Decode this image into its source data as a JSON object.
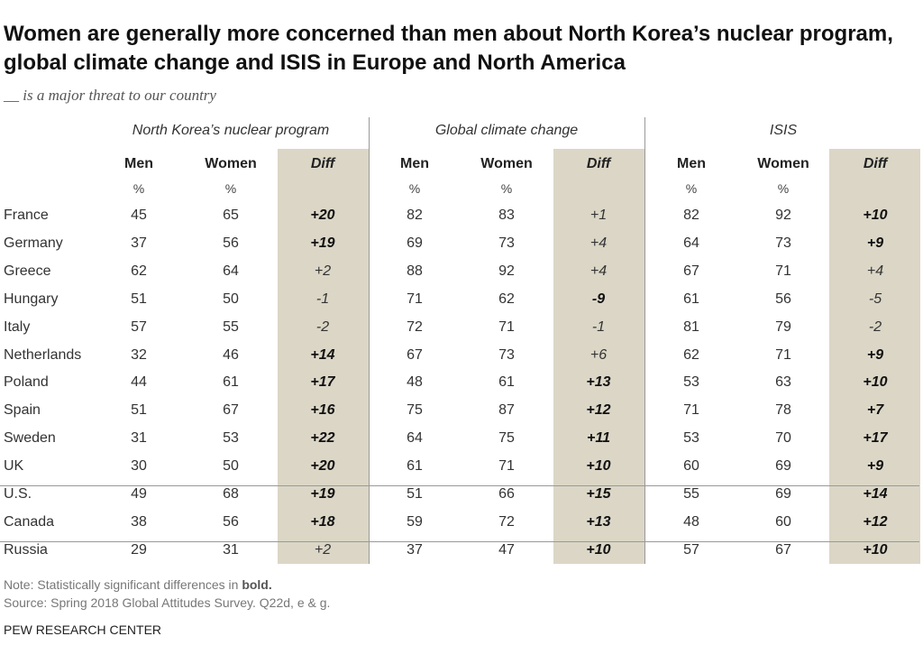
{
  "header": {
    "title": "Women are generally more concerned than men about North Korea’s nuclear program, global climate change and ISIS in Europe and North America",
    "subtitle": "__ is a major threat to our country"
  },
  "table": {
    "groups": [
      "North Korea’s nuclear program",
      "Global climate change",
      "ISIS"
    ],
    "columns": [
      {
        "label": "Men",
        "unit": "%"
      },
      {
        "label": "Women",
        "unit": "%"
      },
      {
        "label": "Diff"
      }
    ],
    "row_groups": [
      [
        {
          "country": "France",
          "cells": [
            [
              45,
              65,
              "+20"
            ],
            [
              82,
              83,
              "+1"
            ],
            [
              82,
              92,
              "+10"
            ]
          ],
          "bold": [
            true,
            false,
            true
          ]
        },
        {
          "country": "Germany",
          "cells": [
            [
              37,
              56,
              "+19"
            ],
            [
              69,
              73,
              "+4"
            ],
            [
              64,
              73,
              "+9"
            ]
          ],
          "bold": [
            true,
            false,
            true
          ]
        },
        {
          "country": "Greece",
          "cells": [
            [
              62,
              64,
              "+2"
            ],
            [
              88,
              92,
              "+4"
            ],
            [
              67,
              71,
              "+4"
            ]
          ],
          "bold": [
            false,
            false,
            false
          ]
        },
        {
          "country": "Hungary",
          "cells": [
            [
              51,
              50,
              "-1"
            ],
            [
              71,
              62,
              "-9"
            ],
            [
              61,
              56,
              "-5"
            ]
          ],
          "bold": [
            false,
            true,
            false
          ]
        },
        {
          "country": "Italy",
          "cells": [
            [
              57,
              55,
              "-2"
            ],
            [
              72,
              71,
              "-1"
            ],
            [
              81,
              79,
              "-2"
            ]
          ],
          "bold": [
            false,
            false,
            false
          ]
        },
        {
          "country": "Netherlands",
          "cells": [
            [
              32,
              46,
              "+14"
            ],
            [
              67,
              73,
              "+6"
            ],
            [
              62,
              71,
              "+9"
            ]
          ],
          "bold": [
            true,
            false,
            true
          ]
        },
        {
          "country": "Poland",
          "cells": [
            [
              44,
              61,
              "+17"
            ],
            [
              48,
              61,
              "+13"
            ],
            [
              53,
              63,
              "+10"
            ]
          ],
          "bold": [
            true,
            true,
            true
          ]
        },
        {
          "country": "Spain",
          "cells": [
            [
              51,
              67,
              "+16"
            ],
            [
              75,
              87,
              "+12"
            ],
            [
              71,
              78,
              "+7"
            ]
          ],
          "bold": [
            true,
            true,
            true
          ]
        },
        {
          "country": "Sweden",
          "cells": [
            [
              31,
              53,
              "+22"
            ],
            [
              64,
              75,
              "+11"
            ],
            [
              53,
              70,
              "+17"
            ]
          ],
          "bold": [
            true,
            true,
            true
          ]
        },
        {
          "country": "UK",
          "cells": [
            [
              30,
              50,
              "+20"
            ],
            [
              61,
              71,
              "+10"
            ],
            [
              60,
              69,
              "+9"
            ]
          ],
          "bold": [
            true,
            true,
            true
          ]
        }
      ],
      [
        {
          "country": "U.S.",
          "cells": [
            [
              49,
              68,
              "+19"
            ],
            [
              51,
              66,
              "+15"
            ],
            [
              55,
              69,
              "+14"
            ]
          ],
          "bold": [
            true,
            true,
            true
          ]
        },
        {
          "country": "Canada",
          "cells": [
            [
              38,
              56,
              "+18"
            ],
            [
              59,
              72,
              "+13"
            ],
            [
              48,
              60,
              "+12"
            ]
          ],
          "bold": [
            true,
            true,
            true
          ]
        }
      ],
      [
        {
          "country": "Russia",
          "cells": [
            [
              29,
              31,
              "+2"
            ],
            [
              37,
              47,
              "+10"
            ],
            [
              57,
              67,
              "+10"
            ]
          ],
          "bold": [
            false,
            true,
            true
          ]
        }
      ]
    ]
  },
  "footer": {
    "note": {
      "text": "Note: Statistically significant differences in ",
      "bold": "bold."
    },
    "source": "Source: Spring 2018 Global Attitudes Survey. Q22d, e & g.",
    "credit": "PEW RESEARCH CENTER"
  }
}
